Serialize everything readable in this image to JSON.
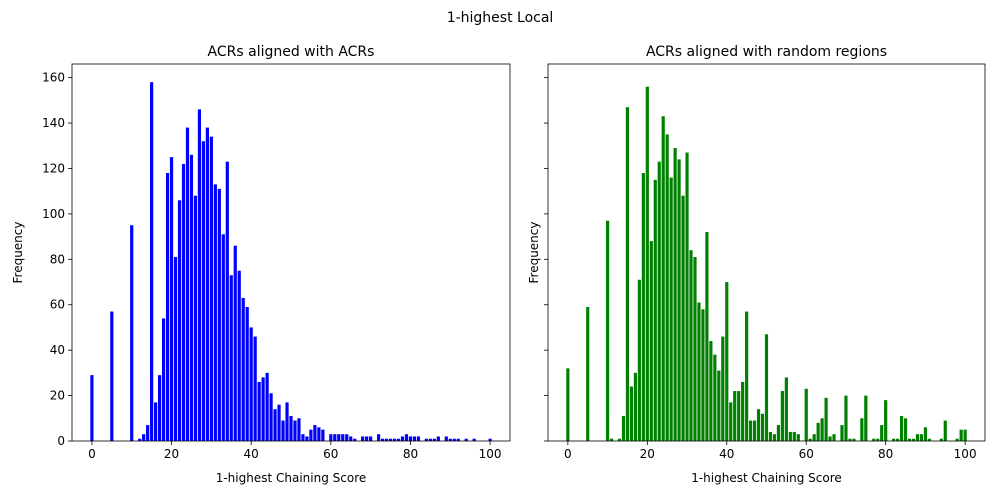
{
  "figure": {
    "suptitle": "1-highest Local"
  },
  "chart_data": [
    {
      "type": "bar",
      "title": "ACRs aligned with ACRs",
      "xlabel": "1-highest Chaining Score",
      "ylabel": "Frequency",
      "xlim": [
        -5,
        105
      ],
      "ylim": [
        0,
        166
      ],
      "xticks": [
        0,
        20,
        40,
        60,
        80,
        100
      ],
      "yticks": [
        0,
        20,
        40,
        60,
        80,
        100,
        120,
        140,
        160
      ],
      "color": "#0000ff",
      "grid": false,
      "x": [
        0,
        5,
        10,
        12,
        13,
        14,
        15,
        16,
        17,
        18,
        19,
        20,
        21,
        22,
        23,
        24,
        25,
        26,
        27,
        28,
        29,
        30,
        31,
        32,
        33,
        34,
        35,
        36,
        37,
        38,
        39,
        40,
        41,
        42,
        43,
        44,
        45,
        46,
        47,
        48,
        49,
        50,
        51,
        52,
        53,
        54,
        55,
        56,
        57,
        58,
        60,
        61,
        62,
        63,
        64,
        65,
        66,
        68,
        69,
        70,
        72,
        73,
        74,
        75,
        76,
        77,
        78,
        79,
        80,
        81,
        82,
        84,
        85,
        86,
        87,
        89,
        90,
        91,
        92,
        94,
        96,
        100
      ],
      "values": [
        29,
        57,
        95,
        1,
        3,
        7,
        158,
        17,
        29,
        54,
        118,
        125,
        81,
        106,
        122,
        138,
        126,
        108,
        146,
        132,
        138,
        134,
        113,
        111,
        91,
        123,
        73,
        86,
        75,
        63,
        59,
        50,
        46,
        26,
        28,
        30,
        21,
        14,
        16,
        9,
        17,
        11,
        9,
        10,
        3,
        2,
        5,
        7,
        6,
        5,
        3,
        3,
        3,
        3,
        3,
        2,
        1,
        2,
        2,
        2,
        3,
        1,
        1,
        1,
        1,
        1,
        2,
        3,
        2,
        2,
        2,
        1,
        1,
        1,
        2,
        2,
        1,
        1,
        1,
        1,
        1,
        1
      ]
    },
    {
      "type": "bar",
      "title": "ACRs aligned with random regions",
      "xlabel": "1-highest Chaining Score",
      "ylabel": "Frequency",
      "xlim": [
        -5,
        105
      ],
      "ylim": [
        0,
        166
      ],
      "xticks": [
        0,
        20,
        40,
        60,
        80,
        100
      ],
      "yticks": [
        0,
        20,
        40,
        60,
        80,
        100,
        120,
        140,
        160
      ],
      "color": "#008000",
      "grid": false,
      "x": [
        0,
        5,
        10,
        11,
        13,
        14,
        15,
        16,
        17,
        18,
        19,
        20,
        21,
        22,
        23,
        24,
        25,
        26,
        27,
        28,
        29,
        30,
        31,
        32,
        33,
        34,
        35,
        36,
        37,
        38,
        39,
        40,
        41,
        42,
        43,
        44,
        45,
        46,
        47,
        48,
        49,
        50,
        51,
        52,
        53,
        54,
        55,
        56,
        57,
        58,
        60,
        61,
        62,
        63,
        64,
        65,
        66,
        67,
        69,
        70,
        71,
        72,
        74,
        75,
        77,
        78,
        79,
        80,
        82,
        83,
        84,
        85,
        86,
        87,
        88,
        89,
        90,
        91,
        94,
        95,
        98,
        99,
        100
      ],
      "values": [
        32,
        59,
        97,
        1,
        1,
        11,
        147,
        24,
        30,
        71,
        118,
        156,
        88,
        115,
        123,
        143,
        135,
        116,
        129,
        124,
        108,
        127,
        84,
        81,
        61,
        58,
        92,
        44,
        38,
        31,
        46,
        70,
        17,
        22,
        22,
        26,
        57,
        9,
        9,
        14,
        12,
        47,
        4,
        3,
        7,
        22,
        28,
        4,
        4,
        3,
        23,
        1,
        3,
        8,
        10,
        19,
        2,
        3,
        7,
        20,
        1,
        1,
        10,
        20,
        1,
        1,
        7,
        18,
        1,
        1,
        11,
        10,
        1,
        1,
        3,
        3,
        6,
        1,
        1,
        9,
        1,
        5,
        5
      ]
    }
  ]
}
